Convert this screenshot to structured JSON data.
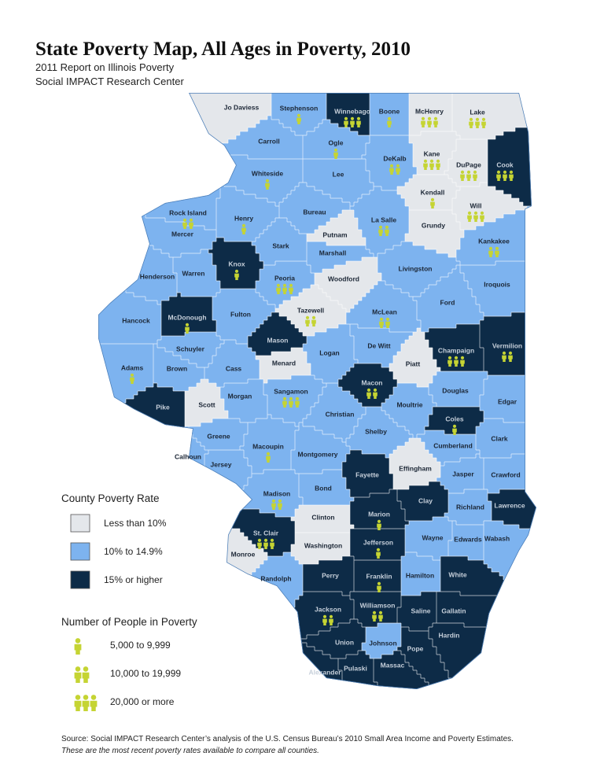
{
  "header": {
    "title": "State Poverty Map, All Ages in Poverty, 2010",
    "subtitle_1": "2011 Report on Illinois Poverty",
    "subtitle_2": "Social IMPACT Research Center"
  },
  "legend": {
    "rate_title": "County Poverty Rate",
    "rates": [
      {
        "label": "Less than 10%",
        "color": "#e4e7eb"
      },
      {
        "label": "10% to 14.9%",
        "color": "#7db3ef"
      },
      {
        "label": "15% or higher",
        "color": "#0d2b47"
      }
    ],
    "people_title": "Number of People in Poverty",
    "icon_color": "#c5d433",
    "people": [
      {
        "label": "5,000 to 9,999",
        "icons": 1
      },
      {
        "label": "10,000 to 19,999",
        "icons": 2
      },
      {
        "label": "20,000 or more",
        "icons": 3
      }
    ]
  },
  "counties": [
    {
      "name": "Jo Daviess",
      "rate_class": 0,
      "people_class": null
    },
    {
      "name": "Stephenson",
      "rate_class": 1,
      "people_class": 0
    },
    {
      "name": "Winnebago",
      "rate_class": 2,
      "people_class": 2
    },
    {
      "name": "Boone",
      "rate_class": 1,
      "people_class": 0
    },
    {
      "name": "McHenry",
      "rate_class": 0,
      "people_class": 2
    },
    {
      "name": "Lake",
      "rate_class": 0,
      "people_class": 2
    },
    {
      "name": "Carroll",
      "rate_class": 1,
      "people_class": null
    },
    {
      "name": "Ogle",
      "rate_class": 1,
      "people_class": 0
    },
    {
      "name": "DeKalb",
      "rate_class": 1,
      "people_class": 1
    },
    {
      "name": "Kane",
      "rate_class": 0,
      "people_class": 2
    },
    {
      "name": "DuPage",
      "rate_class": 0,
      "people_class": 2
    },
    {
      "name": "Cook",
      "rate_class": 2,
      "people_class": 2
    },
    {
      "name": "Whiteside",
      "rate_class": 1,
      "people_class": 0
    },
    {
      "name": "Lee",
      "rate_class": 1,
      "people_class": null
    },
    {
      "name": "Kendall",
      "rate_class": 0,
      "people_class": 0
    },
    {
      "name": "Will",
      "rate_class": 0,
      "people_class": 2
    },
    {
      "name": "Rock Island",
      "rate_class": 1,
      "people_class": 1
    },
    {
      "name": "Henry",
      "rate_class": 1,
      "people_class": 0
    },
    {
      "name": "Bureau",
      "rate_class": 1,
      "people_class": null
    },
    {
      "name": "La Salle",
      "rate_class": 1,
      "people_class": 1
    },
    {
      "name": "Grundy",
      "rate_class": 0,
      "people_class": null
    },
    {
      "name": "Mercer",
      "rate_class": 1,
      "people_class": null
    },
    {
      "name": "Putnam",
      "rate_class": 0,
      "people_class": null
    },
    {
      "name": "Kankakee",
      "rate_class": 1,
      "people_class": 1
    },
    {
      "name": "Stark",
      "rate_class": 1,
      "people_class": null
    },
    {
      "name": "Knox",
      "rate_class": 2,
      "people_class": 0
    },
    {
      "name": "Marshall",
      "rate_class": 1,
      "people_class": null
    },
    {
      "name": "Livingston",
      "rate_class": 1,
      "people_class": null
    },
    {
      "name": "Henderson",
      "rate_class": 1,
      "people_class": null
    },
    {
      "name": "Warren",
      "rate_class": 1,
      "people_class": null
    },
    {
      "name": "Peoria",
      "rate_class": 1,
      "people_class": 2
    },
    {
      "name": "Woodford",
      "rate_class": 0,
      "people_class": null
    },
    {
      "name": "Iroquois",
      "rate_class": 1,
      "people_class": null
    },
    {
      "name": "Ford",
      "rate_class": 1,
      "people_class": null
    },
    {
      "name": "Hancock",
      "rate_class": 1,
      "people_class": null
    },
    {
      "name": "McDonough",
      "rate_class": 2,
      "people_class": 0
    },
    {
      "name": "Fulton",
      "rate_class": 1,
      "people_class": null
    },
    {
      "name": "Tazewell",
      "rate_class": 0,
      "people_class": 1
    },
    {
      "name": "McLean",
      "rate_class": 1,
      "people_class": 1
    },
    {
      "name": "Mason",
      "rate_class": 2,
      "people_class": null
    },
    {
      "name": "Schuyler",
      "rate_class": 1,
      "people_class": null
    },
    {
      "name": "De Witt",
      "rate_class": 1,
      "people_class": null
    },
    {
      "name": "Logan",
      "rate_class": 1,
      "people_class": null
    },
    {
      "name": "Champaign",
      "rate_class": 2,
      "people_class": 2
    },
    {
      "name": "Vermilion",
      "rate_class": 2,
      "people_class": 1
    },
    {
      "name": "Adams",
      "rate_class": 1,
      "people_class": 0
    },
    {
      "name": "Brown",
      "rate_class": 1,
      "people_class": null
    },
    {
      "name": "Cass",
      "rate_class": 1,
      "people_class": null
    },
    {
      "name": "Menard",
      "rate_class": 0,
      "people_class": null
    },
    {
      "name": "Piatt",
      "rate_class": 0,
      "people_class": null
    },
    {
      "name": "Macon",
      "rate_class": 2,
      "people_class": 1
    },
    {
      "name": "Douglas",
      "rate_class": 1,
      "people_class": null
    },
    {
      "name": "Pike",
      "rate_class": 2,
      "people_class": null
    },
    {
      "name": "Scott",
      "rate_class": 0,
      "people_class": null
    },
    {
      "name": "Morgan",
      "rate_class": 1,
      "people_class": null
    },
    {
      "name": "Sangamon",
      "rate_class": 1,
      "people_class": 2
    },
    {
      "name": "Moultrie",
      "rate_class": 1,
      "people_class": null
    },
    {
      "name": "Edgar",
      "rate_class": 1,
      "people_class": null
    },
    {
      "name": "Christian",
      "rate_class": 1,
      "people_class": null
    },
    {
      "name": "Coles",
      "rate_class": 2,
      "people_class": 0
    },
    {
      "name": "Shelby",
      "rate_class": 1,
      "people_class": null
    },
    {
      "name": "Greene",
      "rate_class": 1,
      "people_class": null
    },
    {
      "name": "Clark",
      "rate_class": 1,
      "people_class": null
    },
    {
      "name": "Macoupin",
      "rate_class": 1,
      "people_class": 0
    },
    {
      "name": "Cumberland",
      "rate_class": 1,
      "people_class": null
    },
    {
      "name": "Calhoun",
      "rate_class": 1,
      "people_class": null
    },
    {
      "name": "Jersey",
      "rate_class": 1,
      "people_class": null
    },
    {
      "name": "Montgomery",
      "rate_class": 1,
      "people_class": null
    },
    {
      "name": "Fayette",
      "rate_class": 2,
      "people_class": null
    },
    {
      "name": "Effingham",
      "rate_class": 0,
      "people_class": null
    },
    {
      "name": "Jasper",
      "rate_class": 1,
      "people_class": null
    },
    {
      "name": "Crawford",
      "rate_class": 1,
      "people_class": null
    },
    {
      "name": "Bond",
      "rate_class": 1,
      "people_class": null
    },
    {
      "name": "Madison",
      "rate_class": 1,
      "people_class": 1
    },
    {
      "name": "Clay",
      "rate_class": 2,
      "people_class": null
    },
    {
      "name": "Richland",
      "rate_class": 1,
      "people_class": null
    },
    {
      "name": "Lawrence",
      "rate_class": 2,
      "people_class": null
    },
    {
      "name": "Clinton",
      "rate_class": 0,
      "people_class": null
    },
    {
      "name": "Marion",
      "rate_class": 2,
      "people_class": 0
    },
    {
      "name": "St. Clair",
      "rate_class": 2,
      "people_class": 2
    },
    {
      "name": "Washington",
      "rate_class": 0,
      "people_class": null
    },
    {
      "name": "Jefferson",
      "rate_class": 2,
      "people_class": 0
    },
    {
      "name": "Wayne",
      "rate_class": 1,
      "people_class": null
    },
    {
      "name": "Edwards",
      "rate_class": 1,
      "people_class": null
    },
    {
      "name": "Wabash",
      "rate_class": 1,
      "people_class": null
    },
    {
      "name": "Monroe",
      "rate_class": 0,
      "people_class": null
    },
    {
      "name": "Randolph",
      "rate_class": 1,
      "people_class": null
    },
    {
      "name": "Perry",
      "rate_class": 2,
      "people_class": null
    },
    {
      "name": "Franklin",
      "rate_class": 2,
      "people_class": 0
    },
    {
      "name": "Hamilton",
      "rate_class": 1,
      "people_class": null
    },
    {
      "name": "White",
      "rate_class": 2,
      "people_class": null
    },
    {
      "name": "Jackson",
      "rate_class": 2,
      "people_class": 1
    },
    {
      "name": "Williamson",
      "rate_class": 2,
      "people_class": 1
    },
    {
      "name": "Saline",
      "rate_class": 2,
      "people_class": null
    },
    {
      "name": "Gallatin",
      "rate_class": 2,
      "people_class": null
    },
    {
      "name": "Hardin",
      "rate_class": 2,
      "people_class": null
    },
    {
      "name": "Union",
      "rate_class": 2,
      "people_class": null
    },
    {
      "name": "Johnson",
      "rate_class": 1,
      "people_class": null
    },
    {
      "name": "Pope",
      "rate_class": 2,
      "people_class": null
    },
    {
      "name": "Massac",
      "rate_class": 2,
      "people_class": null
    },
    {
      "name": "Pulaski",
      "rate_class": 2,
      "people_class": null
    },
    {
      "name": "Alexander",
      "rate_class": 2,
      "people_class": null
    }
  ],
  "footer": {
    "source": "Source: Social IMPACT Research Center’s analysis of the U.S. Census Bureau’s 2010 Small Area Income and Poverty Estimates.",
    "note": "These are the most recent poverty rates available to compare all counties."
  }
}
